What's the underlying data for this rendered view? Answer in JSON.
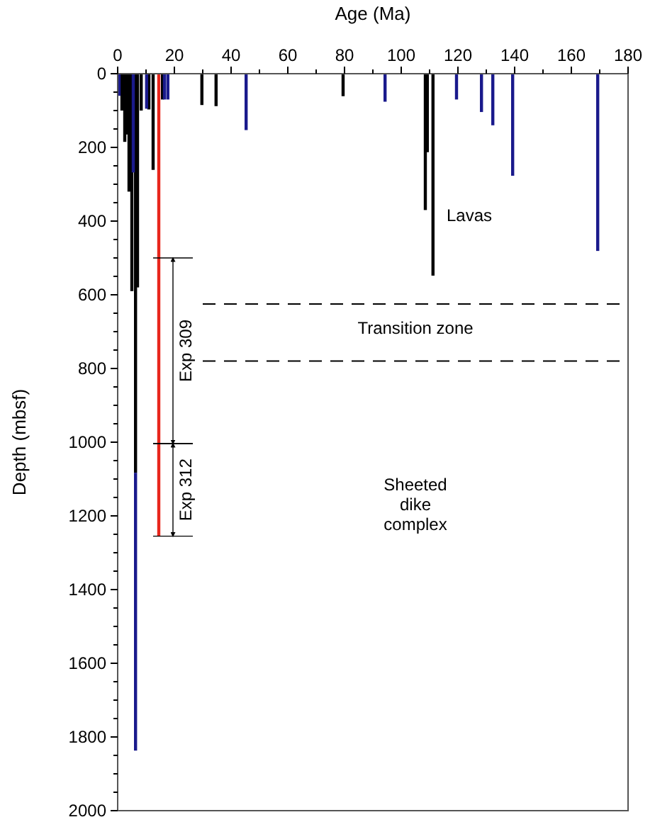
{
  "chart_data": {
    "type": "bar",
    "xlabel": "Age (Ma)",
    "ylabel": "Depth (mbsf)",
    "xlim": [
      0,
      180
    ],
    "xticks": [
      0,
      {
        "value": 10,
        "label": null
      },
      20,
      {
        "value": 30,
        "label": null
      },
      40,
      {
        "value": 50,
        "label": null
      },
      60,
      {
        "value": 70,
        "label": null
      },
      80,
      {
        "value": 90,
        "label": null
      },
      100,
      {
        "value": 110,
        "label": null
      },
      120,
      {
        "value": 130,
        "label": null
      },
      140,
      {
        "value": 150,
        "label": null
      },
      160,
      {
        "value": 170,
        "label": null
      },
      180
    ],
    "ylim": [
      2000,
      0
    ],
    "yticks": [
      0,
      {
        "value": 50,
        "label": null
      },
      {
        "value": 100,
        "label": null
      },
      {
        "value": 150,
        "label": null
      },
      200,
      {
        "value": 250,
        "label": null
      },
      {
        "value": 300,
        "label": null
      },
      {
        "value": 350,
        "label": null
      },
      400,
      {
        "value": 450,
        "label": null
      },
      {
        "value": 500,
        "label": null
      },
      {
        "value": 550,
        "label": null
      },
      600,
      {
        "value": 650,
        "label": null
      },
      {
        "value": 700,
        "label": null
      },
      {
        "value": 750,
        "label": null
      },
      800,
      {
        "value": 850,
        "label": null
      },
      {
        "value": 900,
        "label": null
      },
      {
        "value": 950,
        "label": null
      },
      1000,
      {
        "value": 1050,
        "label": null
      },
      {
        "value": 1100,
        "label": null
      },
      {
        "value": 1150,
        "label": null
      },
      1200,
      {
        "value": 1250,
        "label": null
      },
      {
        "value": 1300,
        "label": null
      },
      {
        "value": 1350,
        "label": null
      },
      1400,
      {
        "value": 1450,
        "label": null
      },
      {
        "value": 1500,
        "label": null
      },
      {
        "value": 1550,
        "label": null
      },
      1600,
      {
        "value": 1650,
        "label": null
      },
      {
        "value": 1700,
        "label": null
      },
      {
        "value": 1750,
        "label": null
      },
      1800,
      {
        "value": 1850,
        "label": null
      },
      {
        "value": 1900,
        "label": null
      },
      {
        "value": 1950,
        "label": null
      },
      2000
    ],
    "series": [
      {
        "color": "#000000",
        "x": [
          1.5,
          2.5,
          3.5,
          4,
          5,
          6.3,
          7,
          8.3,
          11,
          12.5,
          15.8,
          29.7,
          34.7,
          79.5,
          108.5,
          109.2,
          111.2
        ],
        "values": [
          100,
          185,
          165,
          320,
          590,
          1083,
          580,
          100,
          97,
          261,
          70,
          85,
          88,
          61,
          370,
          213,
          548
        ]
      },
      {
        "color": "#1a1a8c",
        "x": [
          0.5,
          5.5,
          6.3,
          10.2,
          16.5,
          17.7,
          45.3,
          94.3,
          119.5,
          128.3,
          132.3,
          139.3,
          169.3
        ],
        "values": [
          60,
          268,
          754,
          95,
          70,
          70,
          153,
          76,
          70,
          104,
          140,
          277,
          481
        ],
        "base": [
          null,
          null,
          1083,
          null,
          null,
          null,
          null,
          null,
          null,
          null,
          null,
          null,
          null
        ]
      },
      {
        "color": "#e8261c",
        "x": [
          14.5
        ],
        "values": [
          1255
        ]
      }
    ],
    "ref_lines": [
      {
        "axis": "y",
        "value": 625,
        "line_style": "dashed"
      },
      {
        "axis": "y",
        "value": 780,
        "line_style": "dashed"
      }
    ],
    "annotations": [
      "Lavas",
      "Sheeted dike complex",
      "Transition zone",
      "Exp 309",
      {
        "text": "Exp 312",
        "x": 14.5,
        "y": 1255
      }
    ],
    "grid": false
  }
}
